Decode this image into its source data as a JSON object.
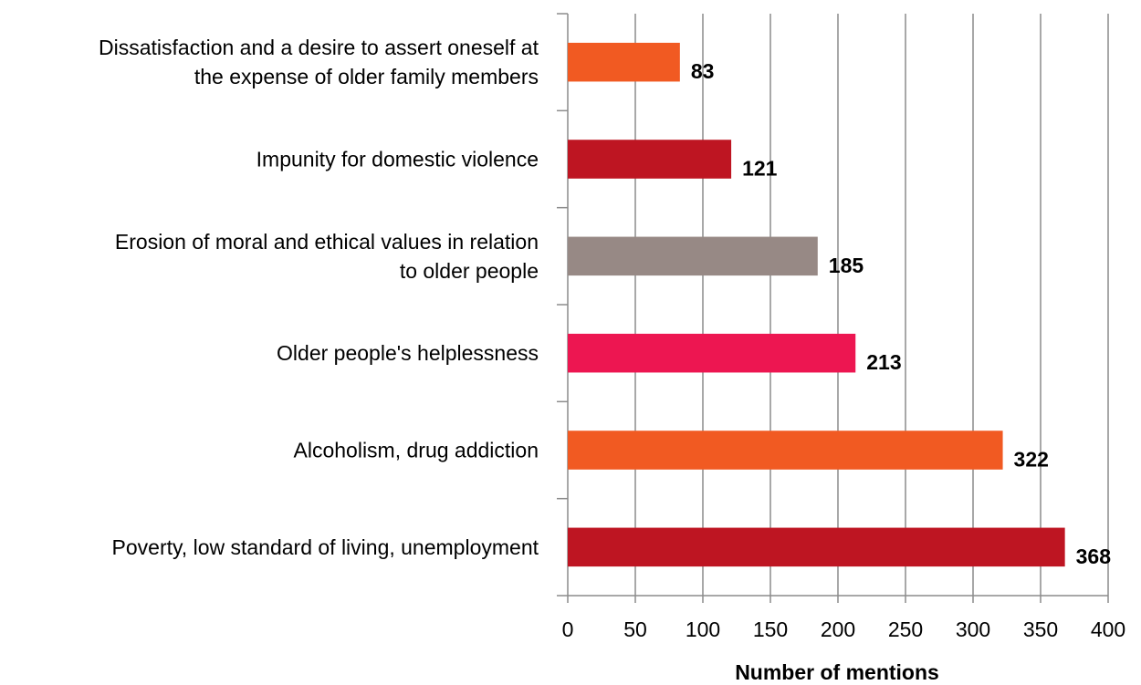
{
  "chart_data": {
    "type": "bar",
    "orientation": "horizontal",
    "categories": [
      [
        "Dissatisfaction and a desire to assert oneself at",
        "the expense of older family members"
      ],
      [
        "Impunity for domestic violence"
      ],
      [
        "Erosion of moral and ethical values in relation",
        "to  older people"
      ],
      [
        "Older people's helplessness"
      ],
      [
        "Alcoholism, drug addiction"
      ],
      [
        "Poverty, low standard of living, unemployment"
      ]
    ],
    "values": [
      83,
      121,
      185,
      213,
      322,
      368
    ],
    "data_labels": [
      "83",
      "121",
      "185",
      "213",
      "322",
      "368"
    ],
    "bar_colors": [
      "#f15a22",
      "#be1522",
      "#978985",
      "#ed1651",
      "#f15a22",
      "#be1522"
    ],
    "xlabel": "Number of mentions",
    "ylabel": "",
    "title": "",
    "xlim": [
      0,
      400
    ],
    "x_ticks": [
      0,
      50,
      100,
      150,
      200,
      250,
      300,
      350,
      400
    ],
    "grid": "vertical",
    "legend": "none"
  }
}
